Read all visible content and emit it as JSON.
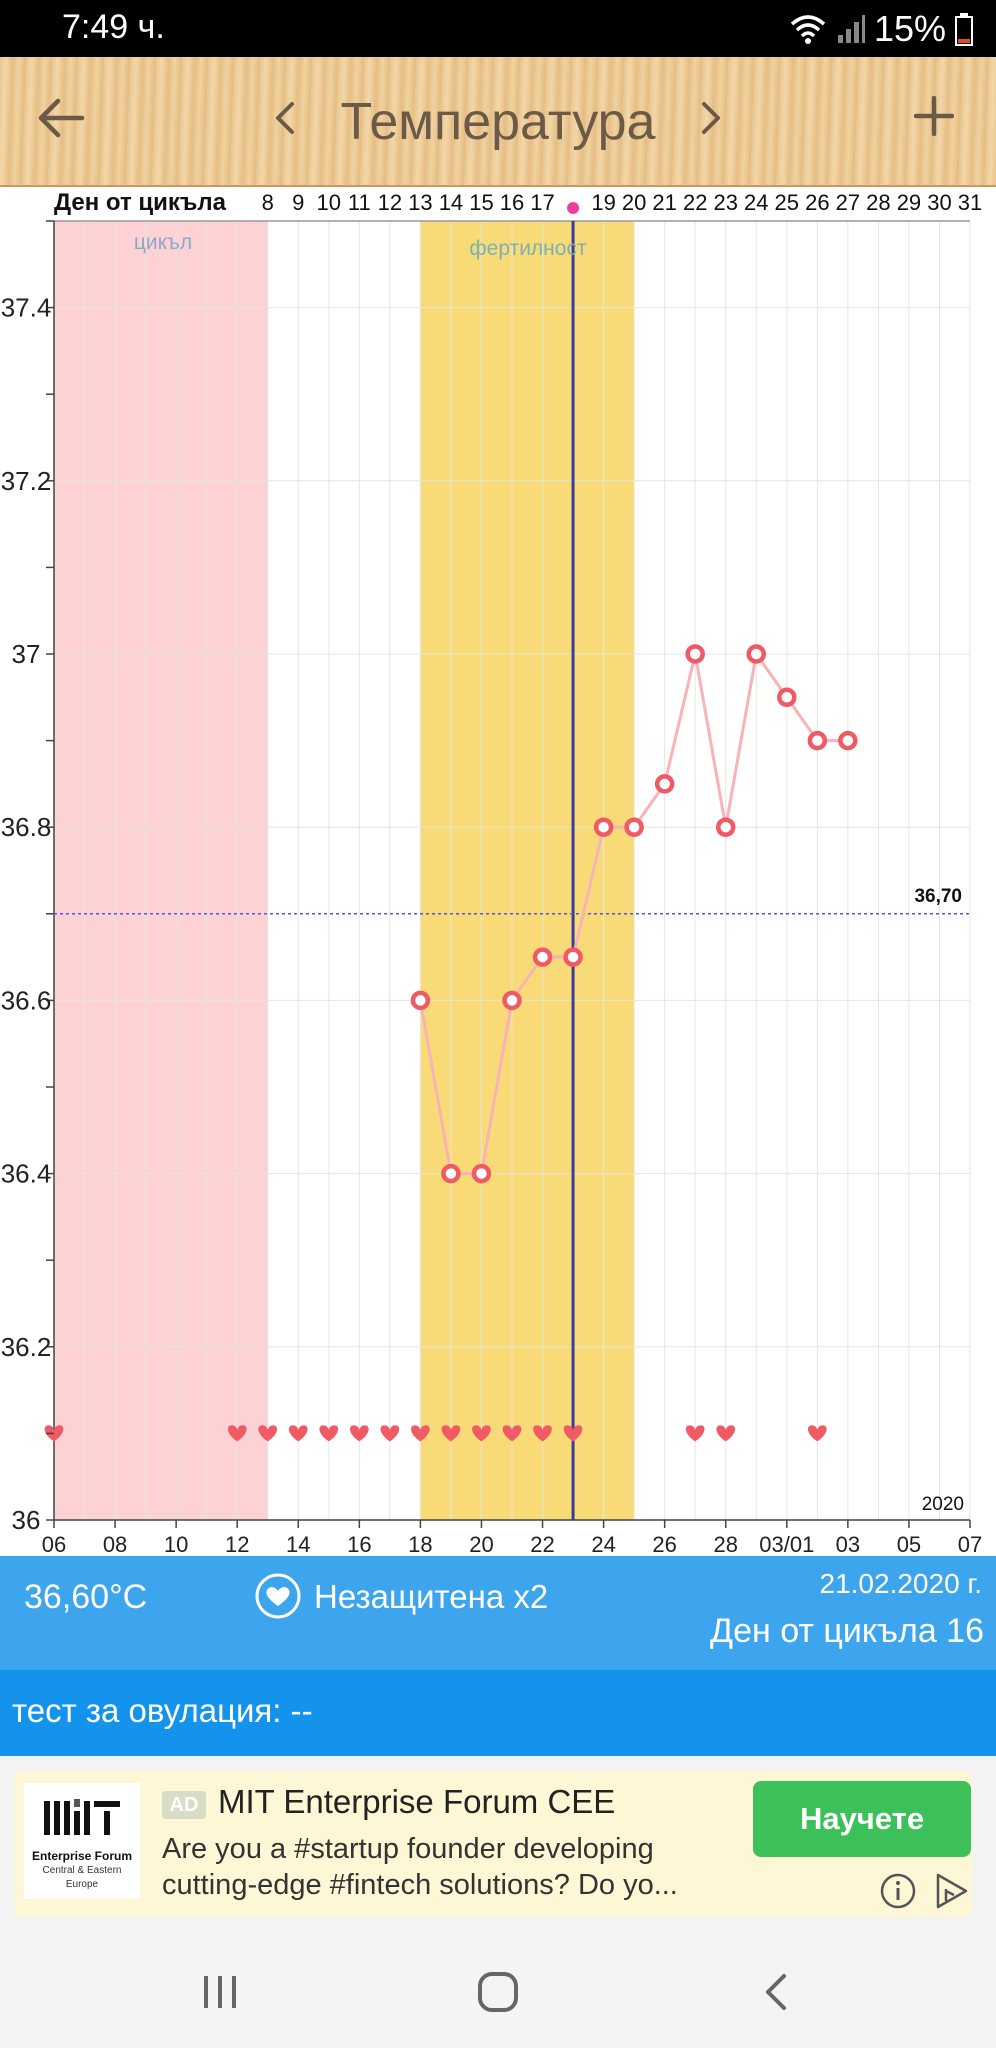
{
  "status_bar": {
    "time": "7:49 ч.",
    "battery": "15%",
    "icons": [
      "wifi-icon",
      "signal-icon",
      "battery-icon"
    ]
  },
  "header": {
    "title": "Температура",
    "back_icon": "back-arrow-icon",
    "prev_icon": "chevron-left-icon",
    "next_icon": "chevron-right-icon",
    "add_icon": "plus-icon"
  },
  "chart": {
    "cycle_row_label": "Ден от цикъла",
    "period_label": "цикъл",
    "fertile_label": "фертилност",
    "reference_line_label": "36,70",
    "year_label": "2020",
    "y_tick_labels": [
      "37.4",
      "37.2",
      "37",
      "36.8",
      "36.6",
      "36.4",
      "36.2",
      "36"
    ],
    "x_tick_labels": [
      "06",
      "08",
      "10",
      "12",
      "14",
      "16",
      "18",
      "20",
      "22",
      "24",
      "26",
      "28",
      "03/01",
      "03",
      "05",
      "07"
    ],
    "colors": {
      "period": "#fdd2d4",
      "fertile": "#f8db76",
      "line": "#f7b3b7",
      "marker": "#ef5a64",
      "today_line": "#3b3c93",
      "reference": "#5b4fe0",
      "heart": "#ef5a64",
      "ovulation_dot": "#ee3d9e"
    }
  },
  "chart_data": {
    "type": "line",
    "xlabel": "",
    "ylabel": "",
    "ylim": [
      36.0,
      37.5
    ],
    "y_ticks": [
      36.0,
      36.2,
      36.4,
      36.6,
      36.8,
      37.0,
      37.2,
      37.4
    ],
    "x_range_days": [
      "2020-02-06",
      "2020-03-07"
    ],
    "x_tick_dates": [
      "2020-02-06",
      "2020-02-08",
      "2020-02-10",
      "2020-02-12",
      "2020-02-14",
      "2020-02-16",
      "2020-02-18",
      "2020-02-20",
      "2020-02-22",
      "2020-02-24",
      "2020-02-26",
      "2020-02-28",
      "2020-03-01",
      "2020-03-03",
      "2020-03-05",
      "2020-03-07"
    ],
    "cycle_days": [
      {
        "date": "2020-02-13",
        "label": "8"
      },
      {
        "date": "2020-02-14",
        "label": "9"
      },
      {
        "date": "2020-02-15",
        "label": "10"
      },
      {
        "date": "2020-02-16",
        "label": "11"
      },
      {
        "date": "2020-02-17",
        "label": "12"
      },
      {
        "date": "2020-02-18",
        "label": "13"
      },
      {
        "date": "2020-02-19",
        "label": "14"
      },
      {
        "date": "2020-02-20",
        "label": "15"
      },
      {
        "date": "2020-02-21",
        "label": "16"
      },
      {
        "date": "2020-02-22",
        "label": "17"
      },
      {
        "date": "2020-02-24",
        "label": "19"
      },
      {
        "date": "2020-02-25",
        "label": "20"
      },
      {
        "date": "2020-02-26",
        "label": "21"
      },
      {
        "date": "2020-02-27",
        "label": "22"
      },
      {
        "date": "2020-02-28",
        "label": "23"
      },
      {
        "date": "2020-02-29",
        "label": "24"
      },
      {
        "date": "2020-03-01",
        "label": "25"
      },
      {
        "date": "2020-03-02",
        "label": "26"
      },
      {
        "date": "2020-03-03",
        "label": "27"
      },
      {
        "date": "2020-03-04",
        "label": "28"
      },
      {
        "date": "2020-03-05",
        "label": "29"
      },
      {
        "date": "2020-03-06",
        "label": "30"
      },
      {
        "date": "2020-03-07",
        "label": "31"
      }
    ],
    "ovulation_date": "2020-02-23",
    "period_range": [
      "2020-02-06",
      "2020-02-13"
    ],
    "fertile_range": [
      "2020-02-18",
      "2020-02-25"
    ],
    "today_date": "2020-02-23",
    "reference_value": 36.7,
    "series": [
      {
        "points": [
          [
            "2020-02-18",
            36.6
          ],
          [
            "2020-02-19",
            36.4
          ],
          [
            "2020-02-20",
            36.4
          ],
          [
            "2020-02-21",
            36.6
          ],
          [
            "2020-02-22",
            36.65
          ],
          [
            "2020-02-23",
            36.65
          ],
          [
            "2020-02-24",
            36.8
          ],
          [
            "2020-02-25",
            36.8
          ],
          [
            "2020-02-26",
            36.85
          ],
          [
            "2020-02-27",
            37.0
          ],
          [
            "2020-02-28",
            36.8
          ],
          [
            "2020-02-29",
            37.0
          ],
          [
            "2020-03-01",
            36.95
          ],
          [
            "2020-03-02",
            36.9
          ],
          [
            "2020-03-03",
            36.9
          ]
        ]
      }
    ],
    "intercourse_dates": [
      "2020-02-06",
      "2020-02-12",
      "2020-02-13",
      "2020-02-14",
      "2020-02-15",
      "2020-02-16",
      "2020-02-17",
      "2020-02-18",
      "2020-02-19",
      "2020-02-20",
      "2020-02-21",
      "2020-02-22",
      "2020-02-23",
      "2020-02-27",
      "2020-02-28",
      "2020-03-02"
    ],
    "grid": true
  },
  "info": {
    "temperature": "36,60°C",
    "intercourse": "Незащитена x2",
    "date": "21.02.2020 г.",
    "cycle_day": "Ден от цикъла 16"
  },
  "ovulation_test": {
    "text": "тест за овулация: --"
  },
  "ad": {
    "badge": "AD",
    "title": "MIT Enterprise Forum CEE",
    "body": "Are you a #startup founder developing cutting-edge #fintech solutions? Do yo...",
    "cta": "Научете",
    "logo_lines": [
      "Enterprise Forum",
      "Central & Eastern",
      "Europe"
    ]
  }
}
